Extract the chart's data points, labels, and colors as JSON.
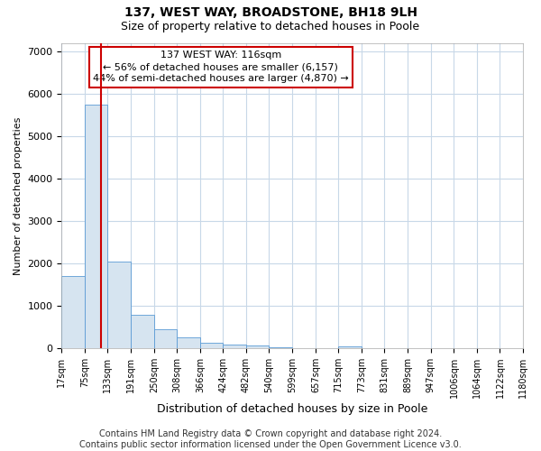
{
  "title": "137, WEST WAY, BROADSTONE, BH18 9LH",
  "subtitle": "Size of property relative to detached houses in Poole",
  "xlabel": "Distribution of detached houses by size in Poole",
  "ylabel": "Number of detached properties",
  "bar_color": "#d6e4f0",
  "bar_edge_color": "#5b9bd5",
  "bin_edges": [
    17,
    75,
    133,
    191,
    250,
    308,
    366,
    424,
    482,
    540,
    599,
    657,
    715,
    773,
    831,
    889,
    947,
    1006,
    1064,
    1122,
    1180
  ],
  "bar_heights": [
    1700,
    5750,
    2050,
    800,
    450,
    270,
    130,
    90,
    65,
    25,
    12,
    5,
    55,
    0,
    0,
    0,
    0,
    0,
    0,
    0
  ],
  "red_line_x": 116,
  "annotation_line1": "137 WEST WAY: 116sqm",
  "annotation_line2": "← 56% of detached houses are smaller (6,157)",
  "annotation_line3": "44% of semi-detached houses are larger (4,870) →",
  "ylim": [
    0,
    7200
  ],
  "yticks": [
    0,
    1000,
    2000,
    3000,
    4000,
    5000,
    6000,
    7000
  ],
  "xtick_labels": [
    "17sqm",
    "75sqm",
    "133sqm",
    "191sqm",
    "250sqm",
    "308sqm",
    "366sqm",
    "424sqm",
    "482sqm",
    "540sqm",
    "599sqm",
    "657sqm",
    "715sqm",
    "773sqm",
    "831sqm",
    "889sqm",
    "947sqm",
    "1006sqm",
    "1064sqm",
    "1122sqm",
    "1180sqm"
  ],
  "footer_text": "Contains HM Land Registry data © Crown copyright and database right 2024.\nContains public sector information licensed under the Open Government Licence v3.0.",
  "background_color": "#ffffff",
  "grid_color": "#c8d8e8",
  "title_fontsize": 10,
  "subtitle_fontsize": 9,
  "annotation_box_color": "#ffffff",
  "annotation_box_edge_color": "#cc0000",
  "footer_fontsize": 7
}
